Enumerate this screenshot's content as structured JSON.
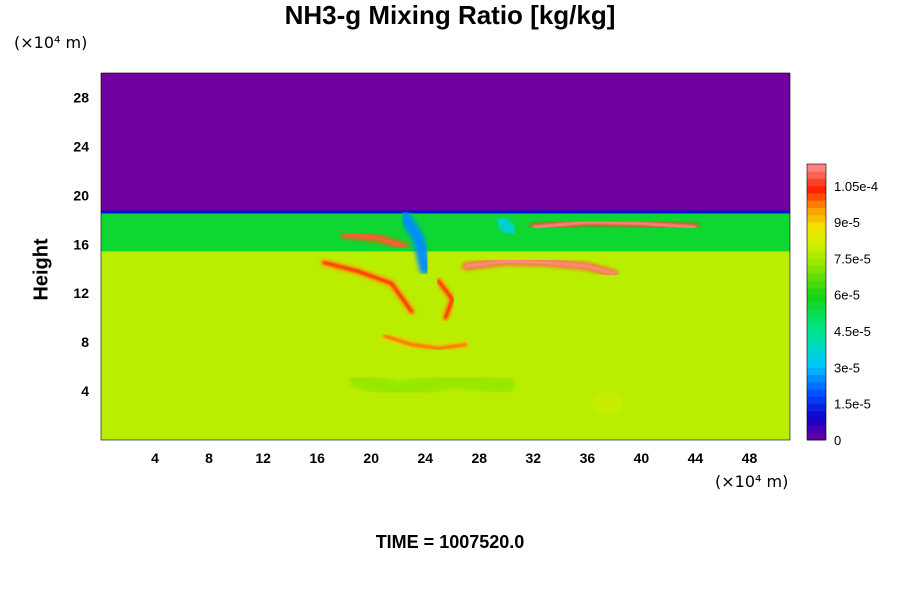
{
  "chart_data": {
    "type": "heatmap",
    "title": "NH3-g Mixing Ratio [kg/kg]",
    "ylabel": "Height",
    "xlabel": "",
    "x_unit": "(×10⁴ m)",
    "y_unit": "(×10⁴ m)",
    "x_ticks": [
      4,
      8,
      12,
      16,
      20,
      24,
      28,
      32,
      36,
      40,
      44,
      48
    ],
    "y_ticks": [
      4,
      8,
      12,
      16,
      20,
      24,
      28
    ],
    "xlim": [
      0,
      51
    ],
    "ylim": [
      0,
      30
    ],
    "colorbar": {
      "min": 0,
      "max": 0.000114,
      "tick_labels": [
        "0",
        "1.5e-5",
        "3e-5",
        "4.5e-5",
        "6e-5",
        "7.5e-5",
        "9e-5",
        "1.05e-4"
      ],
      "tick_values": [
        0,
        1.5e-05,
        3e-05,
        4.5e-05,
        6e-05,
        7.5e-05,
        9e-05,
        0.000105
      ]
    },
    "layers": [
      {
        "name": "upper",
        "y_range": [
          18.6,
          30
        ],
        "value": 0.0
      },
      {
        "name": "band",
        "y_range": [
          15.4,
          18.6
        ],
        "value": 5.6e-05
      },
      {
        "name": "lower",
        "y_range": [
          0,
          15.4
        ],
        "value": 7.8e-05
      }
    ],
    "features": [
      {
        "kind": "streak",
        "value": 0.0001,
        "points": [
          [
            18,
            16.8
          ],
          [
            20.5,
            16.5
          ],
          [
            22.5,
            15.8
          ]
        ]
      },
      {
        "kind": "streak",
        "value": 0.000105,
        "points": [
          [
            32,
            17.4
          ],
          [
            36,
            17.8
          ],
          [
            40,
            17.7
          ],
          [
            44,
            17.4
          ]
        ]
      },
      {
        "kind": "streak",
        "value": 9.5e-05,
        "points": [
          [
            16.5,
            14.5
          ],
          [
            19,
            13.8
          ],
          [
            21.5,
            12.8
          ],
          [
            23,
            10.5
          ]
        ]
      },
      {
        "kind": "streak",
        "value": 0.000108,
        "points": [
          [
            27,
            14.2
          ],
          [
            30,
            14.6
          ],
          [
            33,
            14.5
          ],
          [
            36,
            14.2
          ],
          [
            38,
            13.6
          ]
        ]
      },
      {
        "kind": "streak",
        "value": 9.5e-05,
        "points": [
          [
            25,
            13
          ],
          [
            26,
            11.5
          ],
          [
            25.5,
            10
          ]
        ]
      },
      {
        "kind": "streak",
        "value": 9e-05,
        "points": [
          [
            21,
            8.5
          ],
          [
            23,
            7.8
          ],
          [
            25,
            7.5
          ],
          [
            27,
            7.8
          ]
        ]
      },
      {
        "kind": "plume",
        "value": 2.5e-05,
        "points": [
          [
            22.5,
            18.2
          ],
          [
            23.5,
            16.5
          ],
          [
            24,
            14
          ]
        ]
      },
      {
        "kind": "plume",
        "value": 3.5e-05,
        "points": [
          [
            29.5,
            18.0
          ],
          [
            30.5,
            17.0
          ]
        ]
      },
      {
        "kind": "patch",
        "value": 7e-05,
        "points": [
          [
            19,
            5
          ],
          [
            22,
            4
          ],
          [
            26,
            5
          ],
          [
            30,
            4.5
          ]
        ]
      },
      {
        "kind": "patch",
        "value": 8e-05,
        "points": [
          [
            37.5,
            3.0
          ]
        ]
      }
    ]
  }
}
